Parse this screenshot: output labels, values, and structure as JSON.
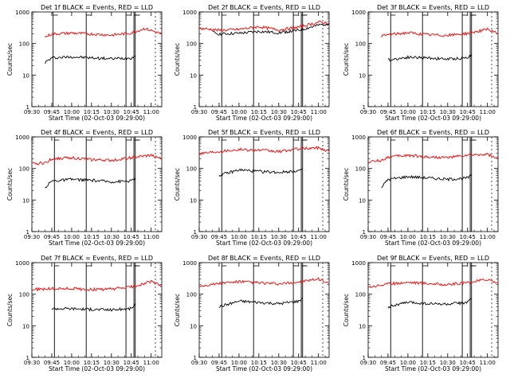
{
  "colors": {
    "events": "#000000",
    "lld": "#ff0000",
    "axis": "#000000",
    "background": "#ffffff"
  },
  "common": {
    "ylabel": "Counts/sec",
    "xlabel": "Start Time (02-Oct-03 09:29:00)",
    "yscale": "log",
    "ylim": [
      1,
      1000
    ],
    "yticks": [
      "1",
      "10",
      "100",
      "1000"
    ],
    "xlim": [
      "09:30",
      "11:08"
    ]
  },
  "chart_data": [
    {
      "type": "line",
      "title": "Det 1f BLACK = Events, RED = LLD",
      "xlabel": "Start Time (02-Oct-03 09:29:00)",
      "ylabel": "Counts/sec",
      "xticks": [
        "09:30",
        "09:45",
        "10:00",
        "10:15",
        "10:30",
        "10:45",
        "11:00"
      ],
      "markers": [
        "09:46",
        "10:11",
        "10:41",
        "10:47",
        "10:48"
      ],
      "series": [
        {
          "name": "Events",
          "color": "#000000",
          "x": [
            "09:40",
            "09:45",
            "10:00",
            "10:15",
            "10:30",
            "10:45",
            "10:48"
          ],
          "y": [
            25,
            35,
            38,
            35,
            33,
            35,
            40
          ]
        },
        {
          "name": "LLD",
          "color": "#ff0000",
          "x": [
            "09:40",
            "09:45",
            "10:00",
            "10:15",
            "10:30",
            "10:45",
            "10:55",
            "11:00",
            "11:08"
          ],
          "y": [
            160,
            200,
            215,
            200,
            185,
            215,
            300,
            260,
            200
          ]
        }
      ]
    },
    {
      "type": "line",
      "title": "Det 2f BLACK = Events, RED = LLD",
      "xlabel": "Start Time (02-Oct-03 09:29:00)",
      "ylabel": "Counts/sec",
      "xticks": [
        "09:30",
        "09:45",
        "10:00",
        "10:15",
        "10:30",
        "10:45",
        "11:00"
      ],
      "markers": [
        "09:47",
        "10:11",
        "10:41",
        "10:47",
        "10:48"
      ],
      "series": [
        {
          "name": "Events",
          "color": "#000000",
          "x": [
            "09:40",
            "09:45",
            "10:00",
            "10:15",
            "10:30",
            "10:45",
            "11:00",
            "11:08"
          ],
          "y": [
            230,
            200,
            210,
            240,
            220,
            260,
            380,
            430
          ]
        },
        {
          "name": "LLD",
          "color": "#ff0000",
          "x": [
            "09:30",
            "09:40",
            "09:45",
            "10:00",
            "10:15",
            "10:30",
            "10:45",
            "11:00",
            "11:08"
          ],
          "y": [
            300,
            280,
            260,
            280,
            340,
            270,
            330,
            470,
            450
          ]
        }
      ]
    },
    {
      "type": "line",
      "title": "Det 3f BLACK = Events, RED = LLD",
      "xlabel": "Start Time (02-Oct-03 09:29:00)",
      "ylabel": "Counts/sec",
      "xticks": [
        "09:30",
        "09:45",
        "10:00",
        "10:15",
        "10:30",
        "10:45",
        "11:00"
      ],
      "markers": [
        "09:47",
        "10:11",
        "10:41",
        "10:47",
        "10:48"
      ],
      "series": [
        {
          "name": "Events",
          "color": "#000000",
          "x": [
            "09:45",
            "10:00",
            "10:15",
            "10:30",
            "10:45",
            "10:48"
          ],
          "y": [
            30,
            37,
            35,
            32,
            35,
            45
          ]
        },
        {
          "name": "LLD",
          "color": "#ff0000",
          "x": [
            "09:40",
            "09:45",
            "10:00",
            "10:15",
            "10:30",
            "10:45",
            "11:00",
            "11:08"
          ],
          "y": [
            170,
            190,
            220,
            190,
            180,
            210,
            280,
            200
          ]
        }
      ]
    },
    {
      "type": "line",
      "title": "Det 4f BLACK = Events, RED = LLD",
      "xlabel": "Start Time (02-Oct-03 09:29:00)",
      "ylabel": "Counts/sec",
      "xticks": [
        "09:30",
        "09:45",
        "10:00",
        "10:15",
        "10:30",
        "10:45",
        "11:00"
      ],
      "markers": [
        "09:47",
        "10:11",
        "10:41",
        "10:47",
        "10:48"
      ],
      "series": [
        {
          "name": "Events",
          "color": "#000000",
          "x": [
            "09:40",
            "09:45",
            "10:00",
            "10:15",
            "10:30",
            "10:45",
            "10:48"
          ],
          "y": [
            25,
            40,
            45,
            42,
            38,
            40,
            50
          ]
        },
        {
          "name": "LLD",
          "color": "#ff0000",
          "x": [
            "09:30",
            "09:40",
            "09:45",
            "10:00",
            "10:15",
            "10:30",
            "10:45",
            "11:00",
            "11:08"
          ],
          "y": [
            140,
            150,
            200,
            220,
            190,
            180,
            220,
            260,
            200
          ]
        }
      ]
    },
    {
      "type": "line",
      "title": "Det 5f BLACK = Events, RED = LLD",
      "xlabel": "Start Time (02-Oct-03 09:29:00)",
      "ylabel": "Counts/sec",
      "xticks": [
        "09:30",
        "09:45",
        "10:00",
        "10:15",
        "10:30",
        "10:45",
        "11:00"
      ],
      "markers": [
        "09:47",
        "10:11",
        "10:41",
        "10:47",
        "10:48"
      ],
      "series": [
        {
          "name": "Events",
          "color": "#000000",
          "x": [
            "09:45",
            "10:00",
            "10:15",
            "10:30",
            "10:45",
            "10:48"
          ],
          "y": [
            60,
            90,
            80,
            75,
            85,
            95
          ]
        },
        {
          "name": "LLD",
          "color": "#ff0000",
          "x": [
            "09:30",
            "09:45",
            "10:00",
            "10:15",
            "10:30",
            "10:45",
            "11:00",
            "11:08"
          ],
          "y": [
            300,
            350,
            400,
            380,
            340,
            420,
            450,
            350
          ]
        }
      ]
    },
    {
      "type": "line",
      "title": "Det 6f BLACK = Events, RED = LLD",
      "xlabel": "Start Time (02-Oct-03 09:29:00)",
      "ylabel": "Counts/sec",
      "xticks": [
        "09:30",
        "09:45",
        "10:00",
        "10:15",
        "10:30",
        "10:45",
        "11:00"
      ],
      "markers": [
        "09:47",
        "10:11",
        "10:41",
        "10:47",
        "10:48"
      ],
      "series": [
        {
          "name": "Events",
          "color": "#000000",
          "x": [
            "09:40",
            "09:45",
            "10:00",
            "10:15",
            "10:30",
            "10:45",
            "10:48"
          ],
          "y": [
            25,
            45,
            55,
            50,
            45,
            50,
            60
          ]
        },
        {
          "name": "LLD",
          "color": "#ff0000",
          "x": [
            "09:30",
            "09:40",
            "09:45",
            "10:00",
            "10:15",
            "10:30",
            "10:45",
            "11:00",
            "11:08"
          ],
          "y": [
            160,
            180,
            230,
            260,
            230,
            220,
            260,
            280,
            200
          ]
        }
      ]
    },
    {
      "type": "line",
      "title": "Det 7f BLACK = Events, RED = LLD",
      "xlabel": "Start Time (02-Oct-03 09:29:00)",
      "ylabel": "Counts/sec",
      "xticks": [
        "09:30",
        "09:45",
        "10:00",
        "10:15",
        "10:30",
        "10:45",
        "11:00"
      ],
      "markers": [
        "09:47",
        "10:11",
        "10:41",
        "10:47",
        "10:48"
      ],
      "series": [
        {
          "name": "Events",
          "color": "#000000",
          "x": [
            "09:45",
            "10:00",
            "10:15",
            "10:30",
            "10:45",
            "10:48"
          ],
          "y": [
            35,
            35,
            33,
            32,
            35,
            50
          ]
        },
        {
          "name": "LLD",
          "color": "#ff0000",
          "x": [
            "09:30",
            "09:45",
            "10:00",
            "10:15",
            "10:30",
            "10:45",
            "11:00",
            "11:08"
          ],
          "y": [
            140,
            150,
            150,
            140,
            145,
            170,
            250,
            180
          ]
        }
      ]
    },
    {
      "type": "line",
      "title": "Det 8f BLACK = Events, RED = LLD",
      "xlabel": "Start Time (02-Oct-03 09:29:00)",
      "ylabel": "Counts/sec",
      "xticks": [
        "09:30",
        "09:45",
        "10:00",
        "10:15",
        "10:30",
        "10:45",
        "11:00"
      ],
      "markers": [
        "09:47",
        "10:11",
        "10:41",
        "10:47",
        "10:48"
      ],
      "series": [
        {
          "name": "Events",
          "color": "#000000",
          "x": [
            "09:45",
            "10:00",
            "10:15",
            "10:30",
            "10:45",
            "10:48"
          ],
          "y": [
            40,
            60,
            55,
            50,
            60,
            75
          ]
        },
        {
          "name": "LLD",
          "color": "#ff0000",
          "x": [
            "09:30",
            "09:45",
            "10:00",
            "10:15",
            "10:30",
            "10:45",
            "11:00",
            "11:08"
          ],
          "y": [
            180,
            220,
            250,
            230,
            210,
            240,
            300,
            230
          ]
        }
      ]
    },
    {
      "type": "line",
      "title": "Det 9f BLACK = Events, RED = LLD",
      "xlabel": "Start Time (02-Oct-03 09:29:00)",
      "ylabel": "Counts/sec",
      "xticks": [
        "09:30",
        "09:45",
        "10:00",
        "10:15",
        "10:30",
        "10:45",
        "11:00"
      ],
      "markers": [
        "09:47",
        "10:11",
        "10:41",
        "10:47",
        "10:48"
      ],
      "series": [
        {
          "name": "Events",
          "color": "#000000",
          "x": [
            "09:45",
            "10:00",
            "10:15",
            "10:30",
            "10:45",
            "10:48"
          ],
          "y": [
            40,
            55,
            50,
            48,
            55,
            70
          ]
        },
        {
          "name": "LLD",
          "color": "#ff0000",
          "x": [
            "09:30",
            "09:45",
            "10:00",
            "10:15",
            "10:30",
            "10:45",
            "11:00",
            "11:08"
          ],
          "y": [
            170,
            210,
            240,
            220,
            200,
            230,
            300,
            220
          ]
        }
      ]
    }
  ]
}
